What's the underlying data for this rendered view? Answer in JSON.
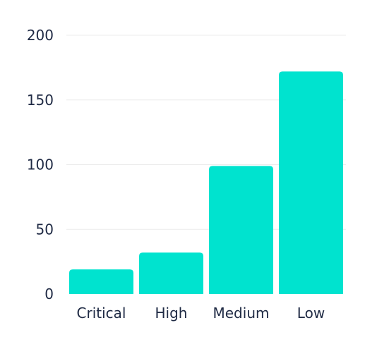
{
  "chart_data": {
    "type": "bar",
    "categories": [
      "Critical",
      "High",
      "Medium",
      "Low"
    ],
    "values": [
      19,
      32,
      99,
      172
    ],
    "ylim": [
      0,
      200
    ],
    "yticks": [
      0,
      50,
      100,
      150,
      200
    ],
    "grid": true,
    "title": "",
    "xlabel": "",
    "ylabel": ""
  },
  "colors": {
    "bar": "#00e3cf",
    "text": "#1f2a44",
    "grid": "#ececec"
  }
}
